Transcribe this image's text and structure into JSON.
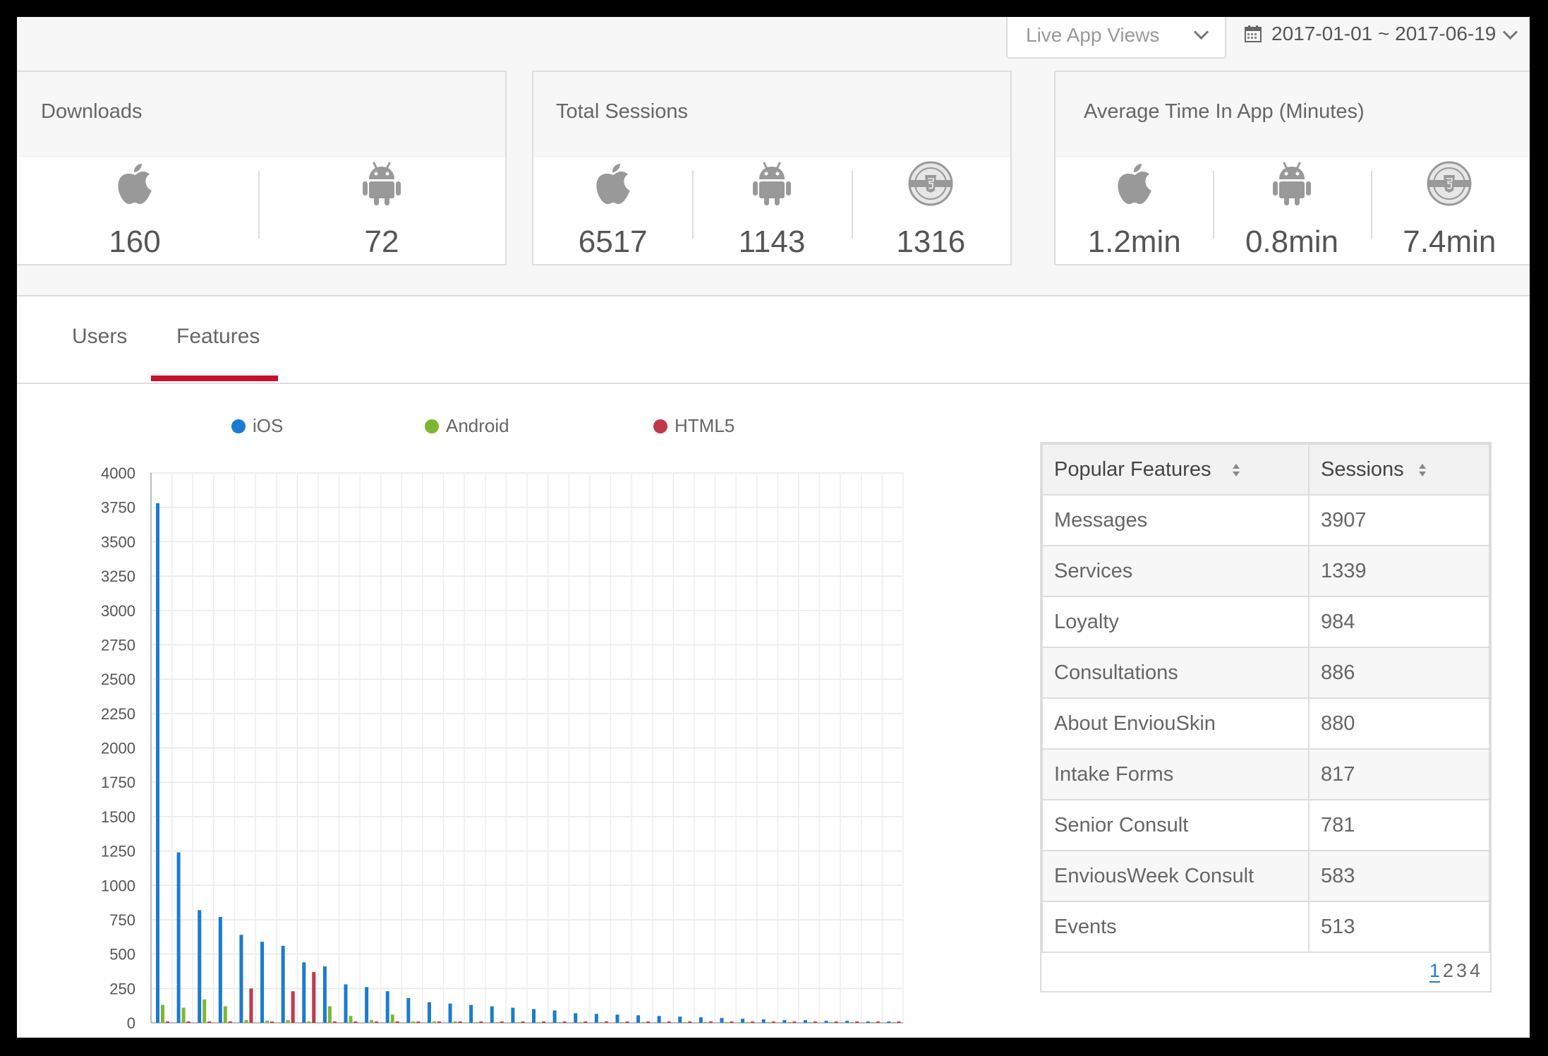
{
  "toolbar": {
    "view_select": "Live App Views",
    "date_range": "2017-01-01 ~ 2017-06-19"
  },
  "cards": [
    {
      "title": "Downloads",
      "metrics": [
        {
          "platform": "ios",
          "icon": "apple-icon",
          "value": "160"
        },
        {
          "platform": "android",
          "icon": "android-icon",
          "value": "72"
        }
      ]
    },
    {
      "title": "Total Sessions",
      "metrics": [
        {
          "platform": "ios",
          "icon": "apple-icon",
          "value": "6517"
        },
        {
          "platform": "android",
          "icon": "android-icon",
          "value": "1143"
        },
        {
          "platform": "html5",
          "icon": "html5-badge-icon",
          "value": "1316"
        }
      ]
    },
    {
      "title": "Average Time In App (Minutes)",
      "metrics": [
        {
          "platform": "ios",
          "icon": "apple-icon",
          "value": "1.2min"
        },
        {
          "platform": "android",
          "icon": "android-icon",
          "value": "0.8min"
        },
        {
          "platform": "html5",
          "icon": "html5-badge-icon",
          "value": "7.4min"
        }
      ]
    }
  ],
  "tabs": [
    {
      "label": "Users",
      "active": false
    },
    {
      "label": "Features",
      "active": true
    }
  ],
  "legend": [
    {
      "label": "iOS",
      "color": "#1a7bd2"
    },
    {
      "label": "Android",
      "color": "#7cb82f"
    },
    {
      "label": "HTML5",
      "color": "#c0394b"
    }
  ],
  "chart_data": {
    "type": "bar",
    "ylim": [
      0,
      4000
    ],
    "yticks": [
      0,
      250,
      500,
      750,
      1000,
      1250,
      1500,
      1750,
      2000,
      2250,
      2500,
      2750,
      3000,
      3250,
      3500,
      3750,
      4000
    ],
    "grid": true,
    "legend_position": "top",
    "n_categories": 36,
    "series": [
      {
        "name": "iOS",
        "color": "#1a7bd2",
        "values": [
          3780,
          1240,
          820,
          770,
          640,
          590,
          560,
          440,
          410,
          280,
          260,
          230,
          180,
          150,
          140,
          130,
          120,
          110,
          100,
          90,
          70,
          65,
          60,
          55,
          50,
          45,
          40,
          35,
          30,
          25,
          20,
          20,
          15,
          15,
          10,
          10
        ]
      },
      {
        "name": "Android",
        "color": "#7cb82f",
        "values": [
          130,
          110,
          170,
          120,
          20,
          15,
          20,
          10,
          120,
          50,
          20,
          60,
          10,
          10,
          10,
          5,
          5,
          5,
          5,
          5,
          5,
          5,
          5,
          5,
          5,
          5,
          5,
          5,
          5,
          5,
          5,
          5,
          5,
          5,
          5,
          5
        ]
      },
      {
        "name": "HTML5",
        "color": "#c0394b",
        "values": [
          10,
          10,
          10,
          10,
          250,
          10,
          230,
          370,
          10,
          10,
          10,
          10,
          10,
          10,
          10,
          10,
          10,
          10,
          10,
          10,
          10,
          10,
          10,
          10,
          10,
          10,
          10,
          10,
          10,
          10,
          10,
          10,
          10,
          10,
          10,
          10
        ]
      }
    ]
  },
  "table": {
    "headers": [
      "Popular Features",
      "Sessions"
    ],
    "rows": [
      [
        "Messages",
        "3907"
      ],
      [
        "Services",
        "1339"
      ],
      [
        "Loyalty",
        "984"
      ],
      [
        "Consultations",
        "886"
      ],
      [
        "About EnviouSkin",
        "880"
      ],
      [
        "Intake Forms",
        "817"
      ],
      [
        "Senior Consult",
        "781"
      ],
      [
        "EnviousWeek Consult",
        "583"
      ],
      [
        "Events",
        "513"
      ]
    ],
    "pages": [
      "1",
      "2",
      "3",
      "4"
    ],
    "current_page": "1"
  }
}
